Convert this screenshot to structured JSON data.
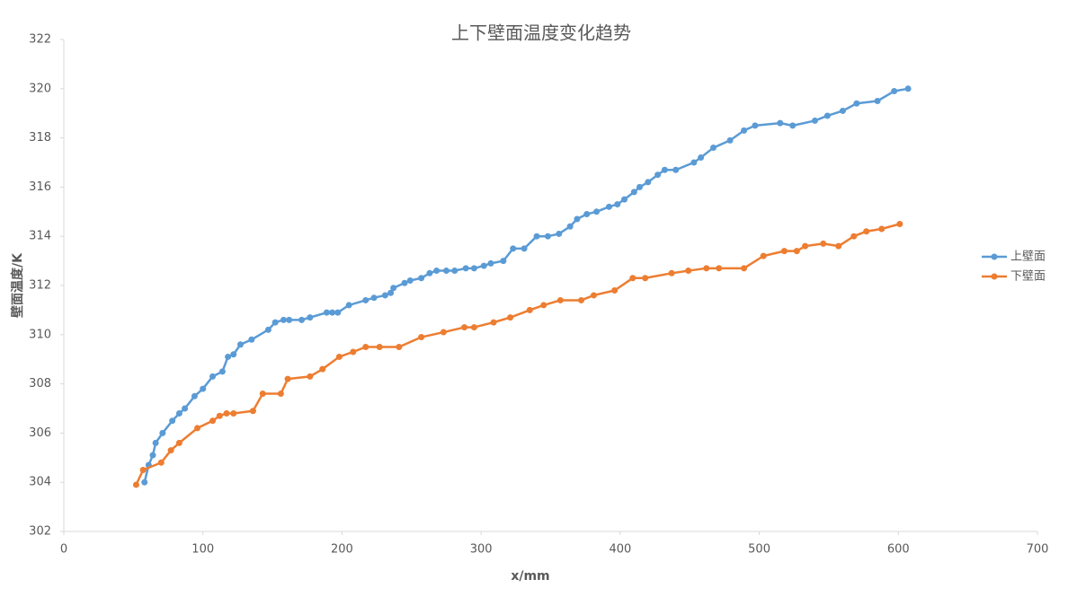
{
  "chart_data": {
    "type": "line",
    "title": "上下壁面温度变化趋势",
    "x_label": "x/mm",
    "y_label": "壁面温度/K",
    "xlim": [
      0,
      700
    ],
    "xticks": [
      0,
      100,
      200,
      300,
      400,
      500,
      600,
      700
    ],
    "ylim": [
      302,
      322
    ],
    "yticks": [
      302,
      304,
      306,
      308,
      310,
      312,
      314,
      316,
      318,
      320,
      322
    ],
    "grid": false,
    "legend": "right",
    "series": [
      {
        "name": "上壁面",
        "color": "#5b9bd5",
        "x": [
          58,
          61,
          64,
          66,
          71,
          78,
          83,
          87,
          94,
          100,
          107,
          114,
          118,
          122,
          127,
          135,
          147,
          152,
          158,
          162,
          171,
          177,
          189,
          193,
          197,
          205,
          217,
          223,
          231,
          235,
          237,
          245,
          249,
          257,
          263,
          268,
          275,
          281,
          289,
          295,
          302,
          307,
          316,
          323,
          331,
          340,
          348,
          356,
          364,
          369,
          376,
          383,
          392,
          398,
          403,
          410,
          414,
          420,
          427,
          432,
          440,
          453,
          458,
          467,
          479,
          489,
          497,
          515,
          524,
          540,
          549,
          560,
          570,
          585,
          597,
          607
        ],
        "values": [
          304.0,
          304.7,
          305.1,
          305.6,
          306.0,
          306.5,
          306.8,
          307.0,
          307.5,
          307.8,
          308.3,
          308.5,
          309.1,
          309.2,
          309.6,
          309.8,
          310.2,
          310.5,
          310.6,
          310.6,
          310.6,
          310.7,
          310.9,
          310.9,
          310.9,
          311.2,
          311.4,
          311.5,
          311.6,
          311.7,
          311.9,
          312.1,
          312.2,
          312.3,
          312.5,
          312.6,
          312.6,
          312.6,
          312.7,
          312.7,
          312.8,
          312.9,
          313.0,
          313.5,
          313.5,
          314.0,
          314.0,
          314.1,
          314.4,
          314.7,
          314.9,
          315.0,
          315.2,
          315.3,
          315.5,
          315.8,
          316.0,
          316.2,
          316.5,
          316.7,
          316.7,
          317.0,
          317.2,
          317.6,
          317.9,
          318.3,
          318.5,
          318.6,
          318.5,
          318.7,
          318.9,
          319.1,
          319.4,
          319.5,
          319.9,
          320.0
        ]
      },
      {
        "name": "下壁面",
        "color": "#ed7d31",
        "x": [
          52,
          57,
          70,
          77,
          83,
          96,
          107,
          112,
          117,
          122,
          136,
          143,
          156,
          161,
          177,
          186,
          198,
          208,
          217,
          227,
          241,
          257,
          273,
          288,
          295,
          309,
          321,
          335,
          345,
          357,
          372,
          381,
          396,
          409,
          418,
          437,
          449,
          462,
          471,
          489,
          503,
          518,
          527,
          533,
          546,
          557,
          568,
          577,
          588,
          601
        ],
        "values": [
          303.9,
          304.5,
          304.8,
          305.3,
          305.6,
          306.2,
          306.5,
          306.7,
          306.8,
          306.8,
          306.9,
          307.6,
          307.6,
          308.2,
          308.3,
          308.6,
          309.1,
          309.3,
          309.5,
          309.5,
          309.5,
          309.9,
          310.1,
          310.3,
          310.3,
          310.5,
          310.7,
          311.0,
          311.2,
          311.4,
          311.4,
          311.6,
          311.8,
          312.3,
          312.3,
          312.5,
          312.6,
          312.7,
          312.7,
          312.7,
          313.2,
          313.4,
          313.4,
          313.6,
          313.7,
          313.6,
          314.0,
          314.2,
          314.3,
          314.5
        ]
      }
    ]
  }
}
